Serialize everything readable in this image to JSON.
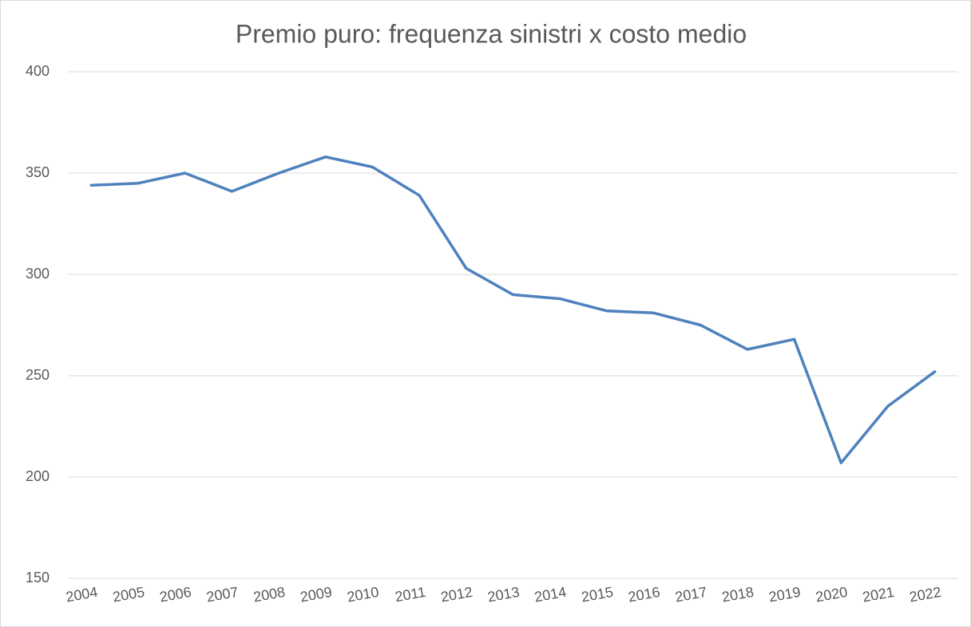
{
  "chart_data": {
    "type": "line",
    "title": "Premio puro: frequenza sinistri x costo medio",
    "categories": [
      "2004",
      "2005",
      "2006",
      "2007",
      "2008",
      "2009",
      "2010",
      "2011",
      "2012",
      "2013",
      "2014",
      "2015",
      "2016",
      "2017",
      "2018",
      "2019",
      "2020",
      "2021",
      "2022"
    ],
    "series": [
      {
        "name": "Premio puro",
        "color": "#4f81bd",
        "values": [
          344,
          345,
          350,
          341,
          350,
          358,
          353,
          339,
          303,
          290,
          288,
          282,
          281,
          275,
          263,
          268,
          207,
          235,
          252
        ]
      }
    ],
    "ylim": [
      150,
      400
    ],
    "yticks": [
      150,
      200,
      250,
      300,
      350,
      400
    ],
    "grid": true
  }
}
